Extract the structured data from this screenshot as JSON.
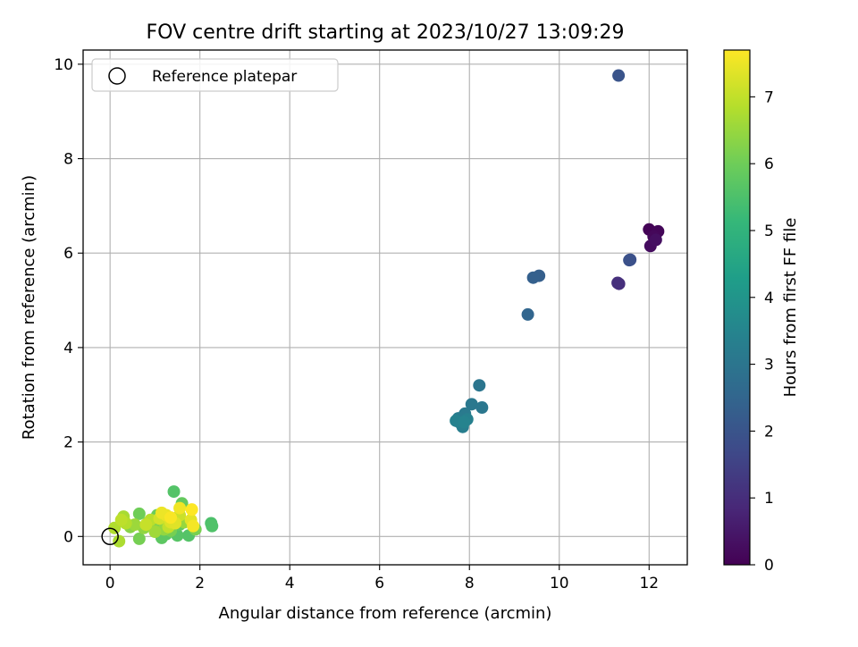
{
  "chart_data": {
    "type": "scatter",
    "title": "FOV centre drift starting at 2023/10/27 13:09:29",
    "xlabel": "Angular distance from reference (arcmin)",
    "ylabel": "Rotation from reference (arcmin)",
    "xlim": [
      -0.6,
      12.85
    ],
    "ylim": [
      -0.6,
      10.3
    ],
    "xticks": [
      0,
      2,
      4,
      6,
      8,
      10,
      12
    ],
    "yticks": [
      0,
      2,
      4,
      6,
      8,
      10
    ],
    "grid": true,
    "legend": {
      "placement": "top-left",
      "entries": [
        "Reference platepar"
      ]
    },
    "reference_point": {
      "x": 0,
      "y": 0
    },
    "colorbar": {
      "label": "Hours from first FF file",
      "range": [
        0,
        7.7
      ],
      "ticks": [
        0,
        1,
        2,
        3,
        4,
        5,
        6,
        7
      ],
      "colormap": "viridis"
    },
    "points": [
      {
        "x": 12.0,
        "y": 6.5,
        "t": 0.05
      },
      {
        "x": 12.2,
        "y": 6.46,
        "t": 0.1
      },
      {
        "x": 12.1,
        "y": 6.35,
        "t": 0.15
      },
      {
        "x": 12.03,
        "y": 6.15,
        "t": 0.25
      },
      {
        "x": 12.15,
        "y": 6.28,
        "t": 0.3
      },
      {
        "x": 11.33,
        "y": 5.35,
        "t": 1.0
      },
      {
        "x": 11.3,
        "y": 5.37,
        "t": 1.05
      },
      {
        "x": 11.58,
        "y": 5.86,
        "t": 1.85
      },
      {
        "x": 11.56,
        "y": 5.85,
        "t": 1.9
      },
      {
        "x": 11.32,
        "y": 9.76,
        "t": 2.0
      },
      {
        "x": 9.55,
        "y": 5.52,
        "t": 2.3
      },
      {
        "x": 9.42,
        "y": 5.48,
        "t": 2.35
      },
      {
        "x": 9.3,
        "y": 4.7,
        "t": 2.5
      },
      {
        "x": 8.22,
        "y": 3.2,
        "t": 3.0
      },
      {
        "x": 8.28,
        "y": 2.73,
        "t": 3.05
      },
      {
        "x": 8.05,
        "y": 2.8,
        "t": 3.1
      },
      {
        "x": 7.9,
        "y": 2.6,
        "t": 3.15
      },
      {
        "x": 7.75,
        "y": 2.5,
        "t": 3.2
      },
      {
        "x": 7.8,
        "y": 2.4,
        "t": 3.25
      },
      {
        "x": 7.85,
        "y": 2.32,
        "t": 3.3
      },
      {
        "x": 7.95,
        "y": 2.48,
        "t": 3.35
      },
      {
        "x": 7.7,
        "y": 2.45,
        "t": 3.4
      },
      {
        "x": 7.88,
        "y": 2.42,
        "t": 3.45
      },
      {
        "x": 1.42,
        "y": 0.95,
        "t": 5.6
      },
      {
        "x": 2.25,
        "y": 0.28,
        "t": 5.5
      },
      {
        "x": 2.27,
        "y": 0.22,
        "t": 5.55
      },
      {
        "x": 1.75,
        "y": 0.02,
        "t": 5.6
      },
      {
        "x": 1.5,
        "y": 0.02,
        "t": 5.65
      },
      {
        "x": 1.25,
        "y": 0.05,
        "t": 5.7
      },
      {
        "x": 1.15,
        "y": -0.03,
        "t": 5.75
      },
      {
        "x": 1.55,
        "y": 0.25,
        "t": 5.8
      },
      {
        "x": 1.6,
        "y": 0.7,
        "t": 5.85
      },
      {
        "x": 0.95,
        "y": 0.3,
        "t": 5.9
      },
      {
        "x": 1.05,
        "y": 0.45,
        "t": 5.95
      },
      {
        "x": 0.65,
        "y": 0.48,
        "t": 6.0
      },
      {
        "x": 0.65,
        "y": -0.05,
        "t": 6.1
      },
      {
        "x": 1.35,
        "y": 0.12,
        "t": 6.1
      },
      {
        "x": 1.9,
        "y": 0.15,
        "t": 6.15
      },
      {
        "x": 0.85,
        "y": 0.3,
        "t": 6.2
      },
      {
        "x": 1.1,
        "y": 0.22,
        "t": 6.25
      },
      {
        "x": 0.45,
        "y": 0.2,
        "t": 6.3
      },
      {
        "x": 1.45,
        "y": 0.38,
        "t": 6.35
      },
      {
        "x": 0.75,
        "y": 0.18,
        "t": 6.4
      },
      {
        "x": 1.2,
        "y": 0.15,
        "t": 6.45
      },
      {
        "x": 1.65,
        "y": 0.3,
        "t": 6.5
      },
      {
        "x": 0.55,
        "y": 0.25,
        "t": 6.55
      },
      {
        "x": 1.0,
        "y": 0.1,
        "t": 6.6
      },
      {
        "x": 0.3,
        "y": 0.42,
        "t": 6.7
      },
      {
        "x": 0.2,
        "y": -0.1,
        "t": 6.75
      },
      {
        "x": 0.1,
        "y": 0.18,
        "t": 6.8
      },
      {
        "x": 0.35,
        "y": 0.28,
        "t": 6.85
      },
      {
        "x": 0.9,
        "y": 0.35,
        "t": 6.9
      },
      {
        "x": 0.25,
        "y": 0.35,
        "t": 6.95
      },
      {
        "x": 1.3,
        "y": 0.2,
        "t": 7.0
      },
      {
        "x": 0.8,
        "y": 0.25,
        "t": 7.05
      },
      {
        "x": 1.55,
        "y": 0.45,
        "t": 7.1
      },
      {
        "x": 1.1,
        "y": 0.38,
        "t": 7.2
      },
      {
        "x": 1.35,
        "y": 0.3,
        "t": 7.3
      },
      {
        "x": 1.45,
        "y": 0.28,
        "t": 7.35
      },
      {
        "x": 1.8,
        "y": 0.35,
        "t": 7.4
      },
      {
        "x": 1.25,
        "y": 0.45,
        "t": 7.45
      },
      {
        "x": 1.15,
        "y": 0.5,
        "t": 7.5
      },
      {
        "x": 1.55,
        "y": 0.6,
        "t": 7.55
      },
      {
        "x": 1.85,
        "y": 0.22,
        "t": 7.6
      },
      {
        "x": 1.35,
        "y": 0.4,
        "t": 7.65
      },
      {
        "x": 1.82,
        "y": 0.57,
        "t": 7.7
      }
    ]
  }
}
